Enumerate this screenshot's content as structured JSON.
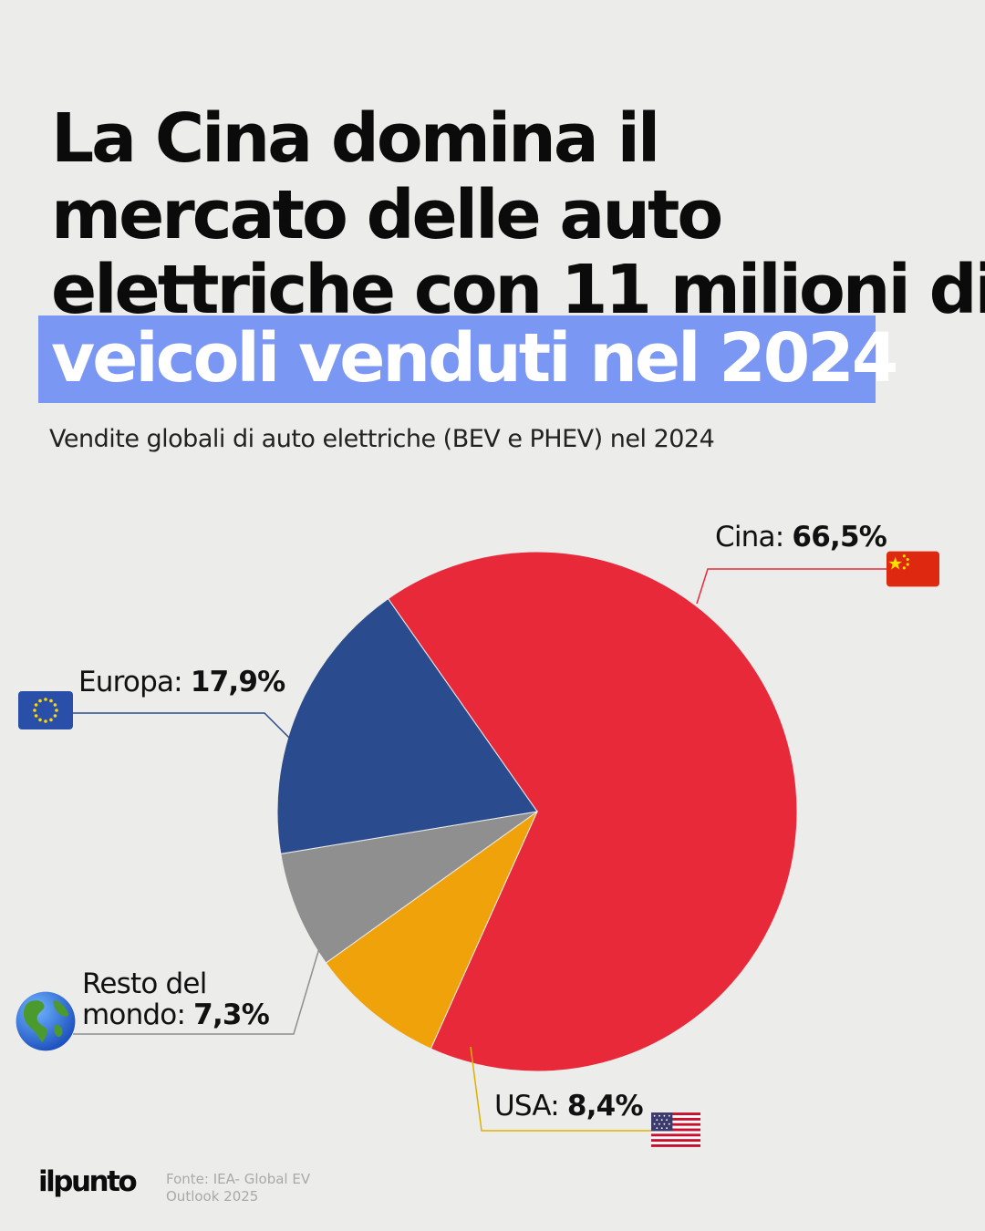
{
  "title": {
    "line1": "La Cina domina il",
    "line2": "mercato delle auto",
    "line3": "elettriche con 11 milioni di",
    "line4_highlight": "veicoli venduti nel 2024"
  },
  "subtitle": "Vendite globali di auto elettriche (BEV e PHEV) nel 2024",
  "chart_data": {
    "type": "pie",
    "title": "Vendite globali di auto elettriche (BEV e PHEV) nel 2024",
    "unit": "%",
    "start_angle_deg": -35,
    "direction": "clockwise",
    "slices": [
      {
        "label": "Cina",
        "value": 66.5,
        "value_text": "66,5%",
        "color": "#e8293a",
        "icon": "china-flag-icon"
      },
      {
        "label": "USA",
        "value": 8.4,
        "value_text": "8,4%",
        "color": "#f0a20b",
        "icon": "usa-flag-icon"
      },
      {
        "label": "Resto del mondo",
        "value": 7.3,
        "value_text": "7,3%",
        "color": "#8f8f8f",
        "icon": "globe-icon"
      },
      {
        "label": "Europa",
        "value": 17.9,
        "value_text": "17,9%",
        "color": "#2a4c8e",
        "icon": "eu-flag-icon"
      }
    ]
  },
  "labels": {
    "cina": {
      "name": "Cina:",
      "value": "66,5%"
    },
    "europa": {
      "name": "Europa:",
      "value": "17,9%"
    },
    "resto": {
      "name_line1": "Resto del",
      "name_line2": "mondo:",
      "value": "7,3%"
    },
    "usa": {
      "name": "USA:",
      "value": "8,4%"
    }
  },
  "leader_colors": {
    "cina": "#e8293a",
    "europa": "#2a4c8e",
    "resto": "#8f8f8f",
    "usa": "#e0b000"
  },
  "footer": {
    "logo": "ilpunto",
    "source_line1": "Fonte: IEA- Global EV",
    "source_line2": "Outlook 2025"
  }
}
